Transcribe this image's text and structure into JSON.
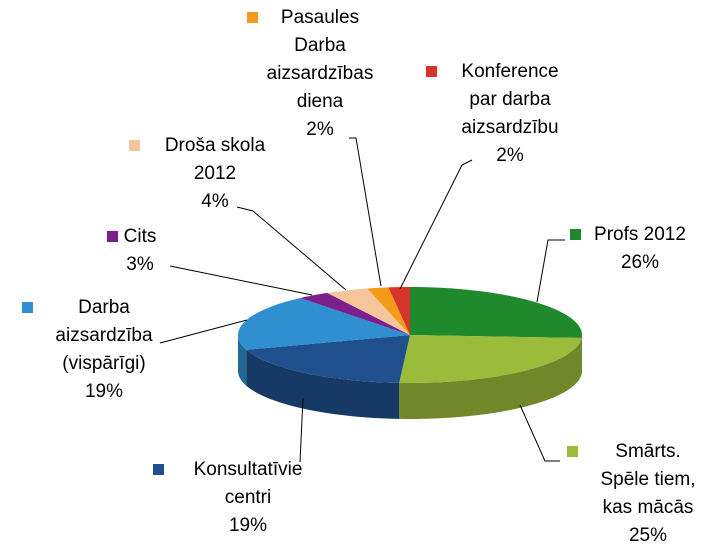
{
  "chart_data": {
    "type": "pie3d",
    "categories": [
      "Profs 2012",
      "Smārts. Spēle tiem, kas mācās",
      "Konsultatīvie centri",
      "Darba aizsardzība (vispārīgi)",
      "Cits",
      "Droša skola 2012",
      "Pasaules Darba aizsardzības diena",
      "Konference par darba aizsardzību"
    ],
    "values": [
      26,
      25,
      19,
      19,
      3,
      4,
      2,
      2
    ],
    "value_labels": [
      "26%",
      "25%",
      "19%",
      "19%",
      "3%",
      "4%",
      "2%",
      "2%"
    ],
    "colors": [
      "#1f8a2b",
      "#9bbb3b",
      "#1f4f8d",
      "#2f8fd0",
      "#7a1f8b",
      "#f6c59b",
      "#f39a1b",
      "#d7342a"
    ]
  }
}
